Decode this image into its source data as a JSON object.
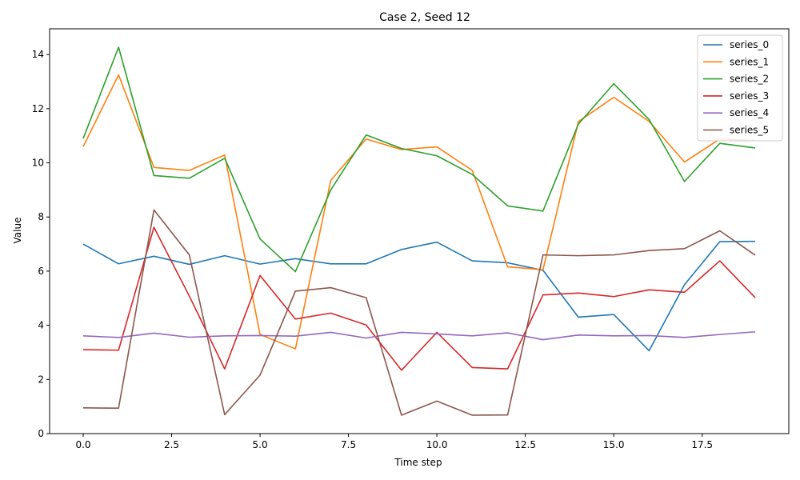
{
  "chart_data": {
    "type": "line",
    "title": "Case 2, Seed 12",
    "xlabel": "Time step",
    "ylabel": "Value",
    "xlim": [
      -0.95,
      19.95
    ],
    "ylim": [
      -0.0,
      14.95
    ],
    "x_ticks": [
      0.0,
      2.5,
      5.0,
      7.5,
      10.0,
      12.5,
      15.0,
      17.5
    ],
    "x_tick_labels": [
      "0.0",
      "2.5",
      "5.0",
      "7.5",
      "10.0",
      "12.5",
      "15.0",
      "17.5"
    ],
    "y_ticks": [
      0,
      2,
      4,
      6,
      8,
      10,
      12,
      14
    ],
    "y_tick_labels": [
      "0",
      "2",
      "4",
      "6",
      "8",
      "10",
      "12",
      "14"
    ],
    "legend_position": "top-right",
    "grid": false,
    "x": [
      0,
      1,
      2,
      3,
      4,
      5,
      6,
      7,
      8,
      9,
      10,
      11,
      12,
      13,
      14,
      15,
      16,
      17,
      18,
      19
    ],
    "series": [
      {
        "name": "series_0",
        "color": "#1f77b4",
        "values": [
          7.0,
          6.27,
          6.55,
          6.25,
          6.57,
          6.26,
          6.46,
          6.27,
          6.27,
          6.8,
          7.07,
          6.38,
          6.31,
          6.03,
          4.3,
          4.4,
          3.06,
          5.5,
          7.09,
          7.1
        ]
      },
      {
        "name": "series_1",
        "color": "#ff7f0e",
        "values": [
          10.6,
          13.25,
          9.83,
          9.72,
          10.29,
          3.66,
          3.13,
          9.35,
          10.88,
          10.49,
          10.59,
          9.72,
          6.16,
          6.05,
          11.52,
          12.42,
          11.53,
          10.03,
          10.88,
          10.83
        ]
      },
      {
        "name": "series_2",
        "color": "#2ca02c",
        "values": [
          10.9,
          14.27,
          9.53,
          9.43,
          10.17,
          7.19,
          5.98,
          9.0,
          11.03,
          10.53,
          10.26,
          9.57,
          8.41,
          8.22,
          11.43,
          12.92,
          11.6,
          9.31,
          10.72,
          10.55
        ]
      },
      {
        "name": "series_3",
        "color": "#d62728",
        "values": [
          3.1,
          3.08,
          7.62,
          5.08,
          2.39,
          5.84,
          4.23,
          4.45,
          4.01,
          2.34,
          3.74,
          2.44,
          2.39,
          5.12,
          5.19,
          5.06,
          5.31,
          5.22,
          6.38,
          5.02
        ]
      },
      {
        "name": "series_4",
        "color": "#9467bd",
        "values": [
          3.61,
          3.55,
          3.71,
          3.56,
          3.61,
          3.62,
          3.6,
          3.74,
          3.53,
          3.74,
          3.68,
          3.61,
          3.72,
          3.47,
          3.64,
          3.61,
          3.62,
          3.55,
          3.66,
          3.76
        ]
      },
      {
        "name": "series_5",
        "color": "#8c564b",
        "values": [
          0.95,
          0.94,
          8.26,
          6.6,
          0.7,
          2.16,
          5.26,
          5.39,
          5.02,
          0.68,
          1.2,
          0.68,
          0.69,
          6.6,
          6.57,
          6.6,
          6.76,
          6.83,
          7.49,
          6.59
        ]
      }
    ]
  }
}
